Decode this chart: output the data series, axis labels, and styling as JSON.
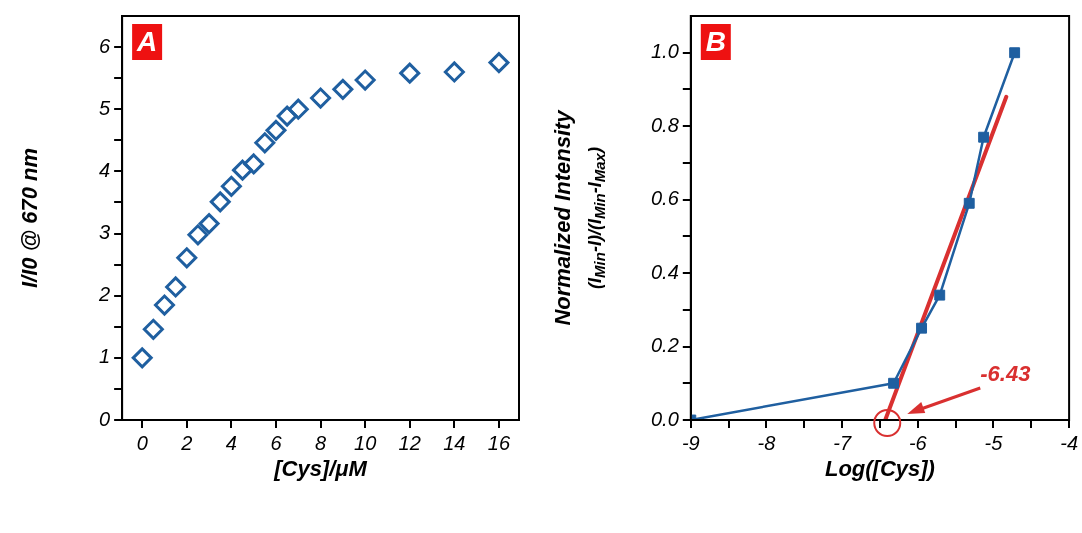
{
  "chart_data": [
    {
      "type": "scatter",
      "xlabel": "[Cys]/μM",
      "ylabel": "I/I0 @ 670 nm",
      "marker": "diamond",
      "grid": false,
      "legend": false,
      "annotations": [
        "A"
      ],
      "xlim": [
        -0.9,
        16.9
      ],
      "xticks": [
        0,
        2,
        4,
        6,
        8,
        10,
        12,
        14,
        16
      ],
      "ylim": [
        0,
        6.5
      ],
      "yticks": [
        0,
        {
          "value": 0.5,
          "label": null
        },
        1,
        {
          "value": 1.5,
          "label": null
        },
        2,
        {
          "value": 2.5,
          "label": null
        },
        3,
        {
          "value": 3.5,
          "label": null
        },
        4,
        {
          "value": 4.5,
          "label": null
        },
        5,
        {
          "value": 5.5,
          "label": null
        },
        6
      ],
      "series": [
        {
          "color": "#1f5fa0",
          "x": [
            0,
            0.5,
            1,
            1.5,
            2,
            2.5,
            3,
            3.5,
            4,
            4.5,
            5,
            5.5,
            6,
            6.5,
            7,
            8,
            9,
            10,
            12,
            14,
            16
          ],
          "values": [
            1.0,
            1.46,
            1.85,
            2.14,
            2.61,
            2.98,
            3.16,
            3.51,
            3.76,
            4.02,
            4.12,
            4.46,
            4.66,
            4.89,
            5.0,
            5.18,
            5.32,
            5.47,
            5.58,
            5.6,
            5.75
          ]
        }
      ]
    },
    {
      "type": "line",
      "xlabel": "Log([Cys])",
      "ylabel": "Normalized Intensity\n(I$_{Min}$-I)/(I$_{Min}$-I$_{Max}$)",
      "grid": false,
      "legend": false,
      "annotations": [
        "B",
        "-6.43"
      ],
      "xlim": [
        -9,
        -4
      ],
      "xticks": [
        -9,
        {
          "value": -8.5,
          "label": null
        },
        -8,
        {
          "value": -7.5,
          "label": null
        },
        -7,
        {
          "value": -6.5,
          "label": null
        },
        -6,
        {
          "value": -5.5,
          "label": null
        },
        -5,
        {
          "value": -4.5,
          "label": null
        },
        -4
      ],
      "ylim": [
        0,
        1.1
      ],
      "yticks": [
        {
          "value": 0,
          "label": "0.0"
        },
        {
          "value": 0.1,
          "label": null
        },
        0.2,
        {
          "value": 0.3,
          "label": null
        },
        0.4,
        {
          "value": 0.5,
          "label": null
        },
        0.6,
        {
          "value": 0.7,
          "label": null
        },
        0.8,
        {
          "value": 0.9,
          "label": null
        },
        {
          "value": 1,
          "label": "1.0"
        }
      ],
      "series": [
        {
          "color": "#1f5fa0",
          "marker": "square",
          "x": [
            -9,
            -6.32,
            -5.95,
            -5.71,
            -5.32,
            -5.13,
            -4.72
          ],
          "values": [
            0,
            0.1,
            0.25,
            0.34,
            0.59,
            0.77,
            1.0
          ]
        },
        {
          "color": "#d93030",
          "marker": "none",
          "x": [
            -6.43,
            -4.83
          ],
          "values": [
            0,
            0.88
          ]
        }
      ]
    }
  ]
}
